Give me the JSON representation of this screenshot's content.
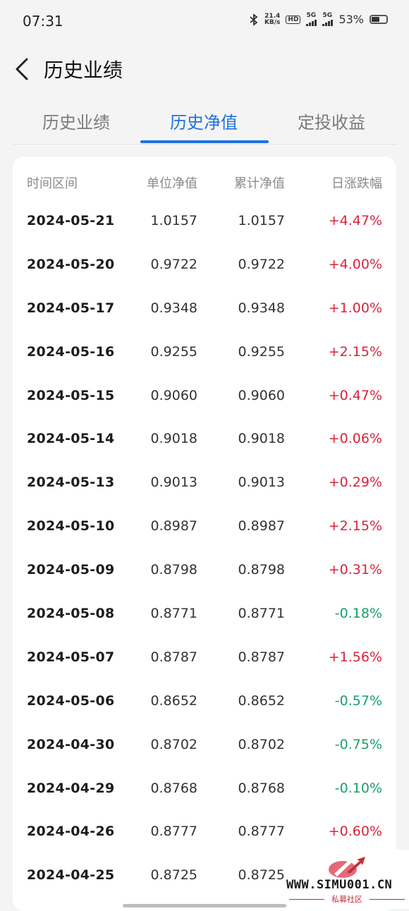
{
  "status_bar": {
    "time": "07:31",
    "net_speed_value": "21.4",
    "net_speed_unit": "KB/s",
    "hd_badge": "HD",
    "signal1_label": "5G",
    "signal2_label": "5G",
    "battery_percent": "53%"
  },
  "header": {
    "title": "历史业绩"
  },
  "tabs": [
    {
      "label": "历史业绩",
      "active": false
    },
    {
      "label": "历史净值",
      "active": true
    },
    {
      "label": "定投收益",
      "active": false
    }
  ],
  "table": {
    "columns": [
      "时间区间",
      "单位净值",
      "累计净值",
      "日涨跌幅"
    ],
    "rows": [
      {
        "date": "2024-05-21",
        "unit_nav": "1.0157",
        "acc_nav": "1.0157",
        "change": "+4.47%"
      },
      {
        "date": "2024-05-20",
        "unit_nav": "0.9722",
        "acc_nav": "0.9722",
        "change": "+4.00%"
      },
      {
        "date": "2024-05-17",
        "unit_nav": "0.9348",
        "acc_nav": "0.9348",
        "change": "+1.00%"
      },
      {
        "date": "2024-05-16",
        "unit_nav": "0.9255",
        "acc_nav": "0.9255",
        "change": "+2.15%"
      },
      {
        "date": "2024-05-15",
        "unit_nav": "0.9060",
        "acc_nav": "0.9060",
        "change": "+0.47%"
      },
      {
        "date": "2024-05-14",
        "unit_nav": "0.9018",
        "acc_nav": "0.9018",
        "change": "+0.06%"
      },
      {
        "date": "2024-05-13",
        "unit_nav": "0.9013",
        "acc_nav": "0.9013",
        "change": "+0.29%"
      },
      {
        "date": "2024-05-10",
        "unit_nav": "0.8987",
        "acc_nav": "0.8987",
        "change": "+2.15%"
      },
      {
        "date": "2024-05-09",
        "unit_nav": "0.8798",
        "acc_nav": "0.8798",
        "change": "+0.31%"
      },
      {
        "date": "2024-05-08",
        "unit_nav": "0.8771",
        "acc_nav": "0.8771",
        "change": "-0.18%"
      },
      {
        "date": "2024-05-07",
        "unit_nav": "0.8787",
        "acc_nav": "0.8787",
        "change": "+1.56%"
      },
      {
        "date": "2024-05-06",
        "unit_nav": "0.8652",
        "acc_nav": "0.8652",
        "change": "-0.57%"
      },
      {
        "date": "2024-04-30",
        "unit_nav": "0.8702",
        "acc_nav": "0.8702",
        "change": "-0.75%"
      },
      {
        "date": "2024-04-29",
        "unit_nav": "0.8768",
        "acc_nav": "0.8768",
        "change": "-0.10%"
      },
      {
        "date": "2024-04-26",
        "unit_nav": "0.8777",
        "acc_nav": "0.8777",
        "change": "+0.60%"
      },
      {
        "date": "2024-04-25",
        "unit_nav": "0.8725",
        "acc_nav": "0.8725",
        "change": ""
      }
    ]
  },
  "watermark": {
    "site": "WWW.SIMU001.CN",
    "subtitle": "私募社区"
  },
  "colors": {
    "accent": "#1f72e0",
    "up": "#d8233c",
    "down": "#17a068"
  }
}
